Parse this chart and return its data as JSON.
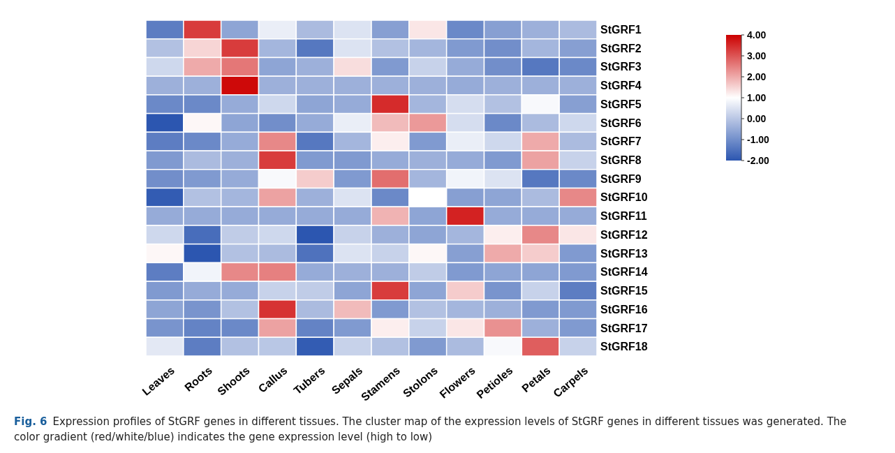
{
  "chart_data": {
    "type": "heatmap",
    "title": "Fig. 6",
    "annotations": [
      "Expression profiles of StGRF genes in different tissues. The cluster map of the expression levels of StGRF genes in different tissues was generated. The color gradient (red/white/blue) indicates the gene expression level (high to low)"
    ],
    "categories": [
      "Leaves",
      "Roots",
      "Shoots",
      "Callus",
      "Tubers",
      "Sepals",
      "Stamens",
      "Stolons",
      "Flowers",
      "Petioles",
      "Petals",
      "Carpels"
    ],
    "y_categories": [
      "StGRF1",
      "StGRF2",
      "StGRF3",
      "StGRF4",
      "StGRF5",
      "StGRF6",
      "StGRF7",
      "StGRF8",
      "StGRF9",
      "StGRF10",
      "StGRF11",
      "StGRF12",
      "StGRF13",
      "StGRF14",
      "StGRF15",
      "StGRF16",
      "StGRF17",
      "StGRF18"
    ],
    "cells": [
      [
        -1.3,
        3.3,
        -0.6,
        0.7,
        -0.2,
        0.5,
        -0.7,
        1.3,
        -1.1,
        -0.7,
        -0.4,
        -0.2
      ],
      [
        -0.1,
        1.5,
        3.3,
        -0.3,
        -1.4,
        0.5,
        -0.1,
        -0.3,
        -0.8,
        -1.0,
        -0.3,
        -0.7
      ],
      [
        0.3,
        2.0,
        2.6,
        -0.6,
        -0.4,
        1.4,
        -0.8,
        0.2,
        -0.5,
        -1.0,
        -1.4,
        -1.1
      ],
      [
        -0.4,
        -0.4,
        3.9,
        -0.4,
        -0.4,
        -0.4,
        -0.4,
        -0.4,
        -0.5,
        -0.4,
        -0.4,
        -0.4
      ],
      [
        -1.1,
        -1.1,
        -0.5,
        0.3,
        -0.6,
        -0.5,
        3.5,
        -0.3,
        0.4,
        -0.1,
        0.9,
        -0.7
      ],
      [
        -2.0,
        1.1,
        -0.6,
        -1.0,
        -0.5,
        0.7,
        1.8,
        2.2,
        0.4,
        -1.1,
        -0.2,
        0.3
      ],
      [
        -1.3,
        -1.1,
        -0.5,
        2.4,
        -1.4,
        -0.3,
        1.2,
        -0.8,
        0.7,
        0.3,
        2.0,
        -0.2
      ],
      [
        -0.8,
        -0.2,
        -0.4,
        3.3,
        -0.8,
        -0.8,
        -0.5,
        -0.4,
        -0.5,
        -0.8,
        2.1,
        0.2
      ],
      [
        -1.0,
        -0.8,
        -0.5,
        0.9,
        1.6,
        -0.8,
        2.7,
        -0.3,
        0.8,
        0.5,
        -1.4,
        -1.1
      ],
      [
        -1.9,
        -0.1,
        -0.3,
        2.1,
        -0.4,
        0.5,
        -1.1,
        1.0,
        -0.7,
        -0.6,
        -0.2,
        2.4
      ],
      [
        -0.5,
        -0.5,
        -0.5,
        -0.5,
        -0.5,
        -0.5,
        1.9,
        -0.6,
        3.6,
        -0.5,
        -0.5,
        -0.5
      ],
      [
        0.3,
        -1.6,
        0.1,
        0.3,
        -2.0,
        0.2,
        -0.4,
        -0.6,
        -0.3,
        1.2,
        2.4,
        1.3
      ],
      [
        1.1,
        -2.0,
        -0.1,
        -0.2,
        -1.5,
        0.5,
        0.2,
        1.1,
        -0.7,
        2.0,
        1.6,
        -0.8
      ],
      [
        -1.3,
        0.8,
        2.4,
        2.5,
        -0.5,
        -0.4,
        -0.4,
        0.1,
        -0.8,
        -0.6,
        -0.6,
        -0.8
      ],
      [
        -0.8,
        -0.5,
        -0.5,
        0.2,
        0.1,
        -0.6,
        3.3,
        -0.6,
        1.6,
        -0.9,
        0.2,
        -1.3
      ],
      [
        -0.6,
        -0.9,
        -0.1,
        3.4,
        -0.2,
        1.8,
        -0.8,
        -0.1,
        -0.3,
        -0.4,
        -0.8,
        -0.8
      ],
      [
        -0.9,
        -1.2,
        -1.1,
        2.1,
        -1.2,
        -0.8,
        1.2,
        0.2,
        1.3,
        2.3,
        -0.4,
        -0.8
      ],
      [
        0.6,
        -1.3,
        -0.1,
        0.0,
        -1.9,
        0.2,
        -0.1,
        -0.8,
        -0.2,
        0.9,
        2.9,
        0.2
      ]
    ],
    "clim": [
      -2,
      4
    ],
    "cticks": [
      {
        "value": 4,
        "label": "4.00"
      },
      {
        "value": 3,
        "label": "3.00"
      },
      {
        "value": 2,
        "label": "2.00"
      },
      {
        "value": 1,
        "label": "1.00"
      },
      {
        "value": 0,
        "label": "0.00"
      },
      {
        "value": -1,
        "label": "-1.00"
      },
      {
        "value": -2,
        "label": "-2.00"
      }
    ]
  }
}
